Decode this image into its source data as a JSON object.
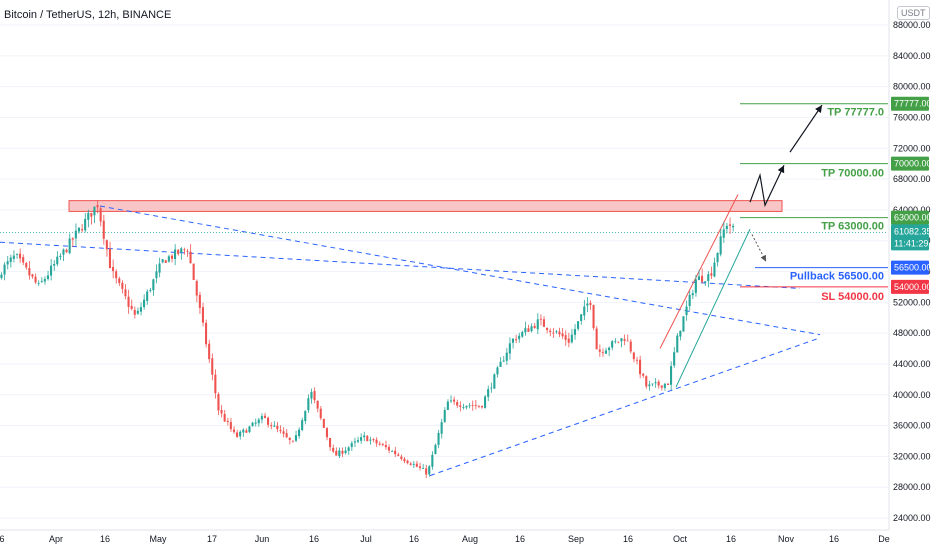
{
  "header": {
    "symbol_title": "Bitcoin / TetherUS, 12h, BINANCE",
    "currency_badge": "USDT"
  },
  "colors": {
    "bull": "#26a69a",
    "bear": "#ef5350",
    "tp_green": "#43a047",
    "pullback_blue": "#2962ff",
    "sl_red": "#f23645",
    "zone_fill": "#f8c6c6",
    "trend_blue": "#2962ff"
  },
  "axes": {
    "price_ticks": [
      "88000.00",
      "84000.00",
      "80000.00",
      "76000.00",
      "72000.00",
      "68000.00",
      "64000.00",
      "60000.00",
      "56000.00",
      "52000.00",
      "48000.00",
      "44000.00",
      "40000.00",
      "36000.00",
      "32000.00",
      "28000.00",
      "24000.00"
    ],
    "time_ticks": [
      "6",
      "Apr",
      "16",
      "May",
      "17",
      "Jun",
      "16",
      "Jul",
      "16",
      "Aug",
      "16",
      "Sep",
      "16",
      "Oct",
      "16",
      "Nov",
      "16",
      "De"
    ]
  },
  "price_labels": {
    "tp3": "77777.00",
    "tp2": "70000.00",
    "tp1": "63000.00",
    "last_price": "61082.35",
    "countdown": "11:41:29",
    "pullback": "56500.00",
    "stop_loss": "54000.00"
  },
  "annotations": {
    "tp3": "TP 77777.0",
    "tp2": "TP 70000.00",
    "tp1": "TP 63000.00",
    "pullback": "Pullback 56500.00",
    "stop_loss": "SL 54000.00"
  },
  "chart_data": {
    "type": "candlestick",
    "title": "Bitcoin / TetherUS, 12h, BINANCE",
    "ylim": [
      24000,
      90000
    ],
    "key_levels": {
      "resistance_zone": [
        63800,
        65200
      ],
      "tp3": 77777,
      "tp2": 70000,
      "tp1": 63000,
      "last_price": 61082.35,
      "pullback": 56500,
      "stop_loss": 54000
    },
    "price_path": [
      {
        "x": "Mar 6",
        "price": 55000
      },
      {
        "x": "Mar 16",
        "price": 58000
      },
      {
        "x": "Mar 26",
        "price": 54000
      },
      {
        "x": "Apr 5",
        "price": 59000
      },
      {
        "x": "Apr 14",
        "price": 64800
      },
      {
        "x": "Apr 18",
        "price": 56000
      },
      {
        "x": "Apr 25",
        "price": 50000
      },
      {
        "x": "May 3",
        "price": 57500
      },
      {
        "x": "May 10",
        "price": 59000
      },
      {
        "x": "May 14",
        "price": 50000
      },
      {
        "x": "May 19",
        "price": 38000
      },
      {
        "x": "May 24",
        "price": 34500
      },
      {
        "x": "Jun 1",
        "price": 37000
      },
      {
        "x": "Jun 10",
        "price": 33500
      },
      {
        "x": "Jun 15",
        "price": 40500
      },
      {
        "x": "Jun 22",
        "price": 32000
      },
      {
        "x": "Jul 1",
        "price": 34500
      },
      {
        "x": "Jul 8",
        "price": 33000
      },
      {
        "x": "Jul 20",
        "price": 29800
      },
      {
        "x": "Jul 26",
        "price": 39000
      },
      {
        "x": "Aug 5",
        "price": 38500
      },
      {
        "x": "Aug 14",
        "price": 47000
      },
      {
        "x": "Aug 22",
        "price": 49500
      },
      {
        "x": "Aug 31",
        "price": 47000
      },
      {
        "x": "Sep 6",
        "price": 52500
      },
      {
        "x": "Sep 8",
        "price": 45500
      },
      {
        "x": "Sep 16",
        "price": 47500
      },
      {
        "x": "Sep 22",
        "price": 41000
      },
      {
        "x": "Sep 28",
        "price": 41500
      },
      {
        "x": "Oct 1",
        "price": 48000
      },
      {
        "x": "Oct 6",
        "price": 55000
      },
      {
        "x": "Oct 10",
        "price": 55500
      },
      {
        "x": "Oct 14",
        "price": 61500
      },
      {
        "x": "Oct 15",
        "price": 62500
      },
      {
        "x": "Oct 17",
        "price": 61082
      }
    ]
  }
}
